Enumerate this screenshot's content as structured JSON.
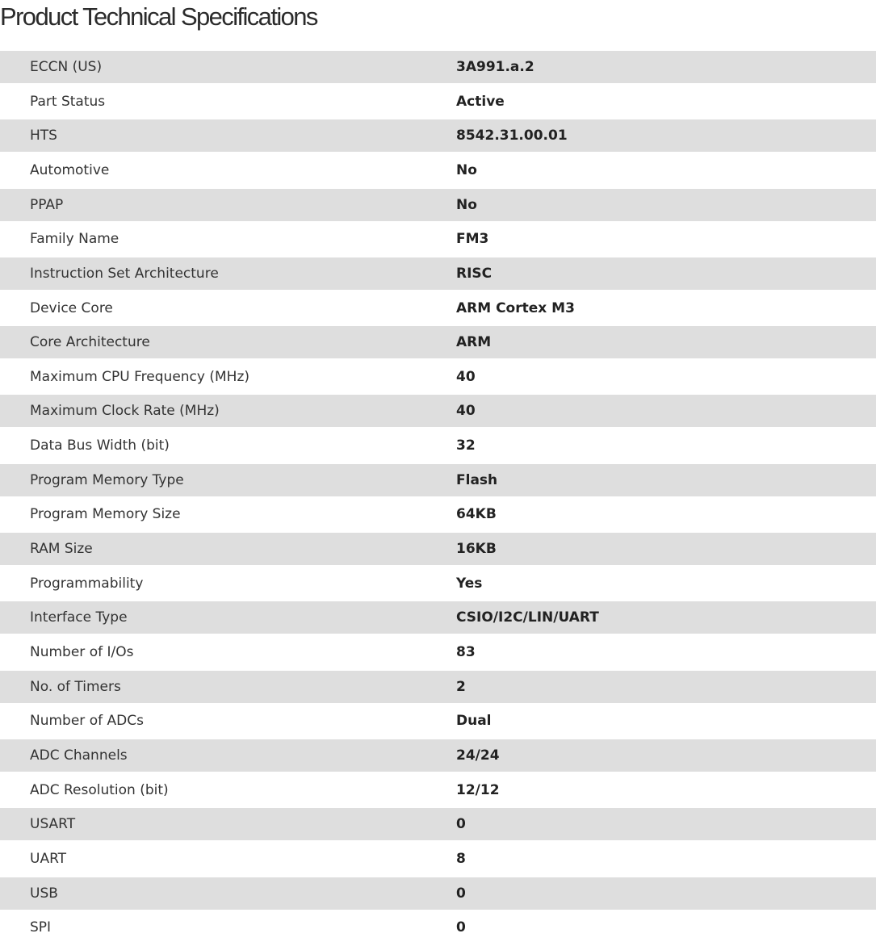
{
  "title": "Product Technical Specifications",
  "specs": [
    {
      "label": "ECCN (US)",
      "value": "3A991.a.2"
    },
    {
      "label": "Part Status",
      "value": "Active"
    },
    {
      "label": "HTS",
      "value": "8542.31.00.01"
    },
    {
      "label": "Automotive",
      "value": "No"
    },
    {
      "label": "PPAP",
      "value": "No"
    },
    {
      "label": "Family Name",
      "value": "FM3"
    },
    {
      "label": "Instruction Set Architecture",
      "value": "RISC"
    },
    {
      "label": "Device Core",
      "value": "ARM Cortex M3"
    },
    {
      "label": "Core Architecture",
      "value": "ARM"
    },
    {
      "label": "Maximum CPU Frequency (MHz)",
      "value": "40"
    },
    {
      "label": "Maximum Clock Rate (MHz)",
      "value": "40"
    },
    {
      "label": "Data Bus Width (bit)",
      "value": "32"
    },
    {
      "label": "Program Memory Type",
      "value": "Flash"
    },
    {
      "label": "Program Memory Size",
      "value": "64KB"
    },
    {
      "label": "RAM Size",
      "value": "16KB"
    },
    {
      "label": "Programmability",
      "value": "Yes"
    },
    {
      "label": "Interface Type",
      "value": "CSIO/I2C/LIN/UART"
    },
    {
      "label": "Number of I/Os",
      "value": "83"
    },
    {
      "label": "No. of Timers",
      "value": "2"
    },
    {
      "label": "Number of ADCs",
      "value": "Dual"
    },
    {
      "label": "ADC Channels",
      "value": "24/24"
    },
    {
      "label": "ADC Resolution (bit)",
      "value": "12/12"
    },
    {
      "label": "USART",
      "value": "0"
    },
    {
      "label": "UART",
      "value": "8"
    },
    {
      "label": "USB",
      "value": "0"
    },
    {
      "label": "SPI",
      "value": "0"
    }
  ]
}
